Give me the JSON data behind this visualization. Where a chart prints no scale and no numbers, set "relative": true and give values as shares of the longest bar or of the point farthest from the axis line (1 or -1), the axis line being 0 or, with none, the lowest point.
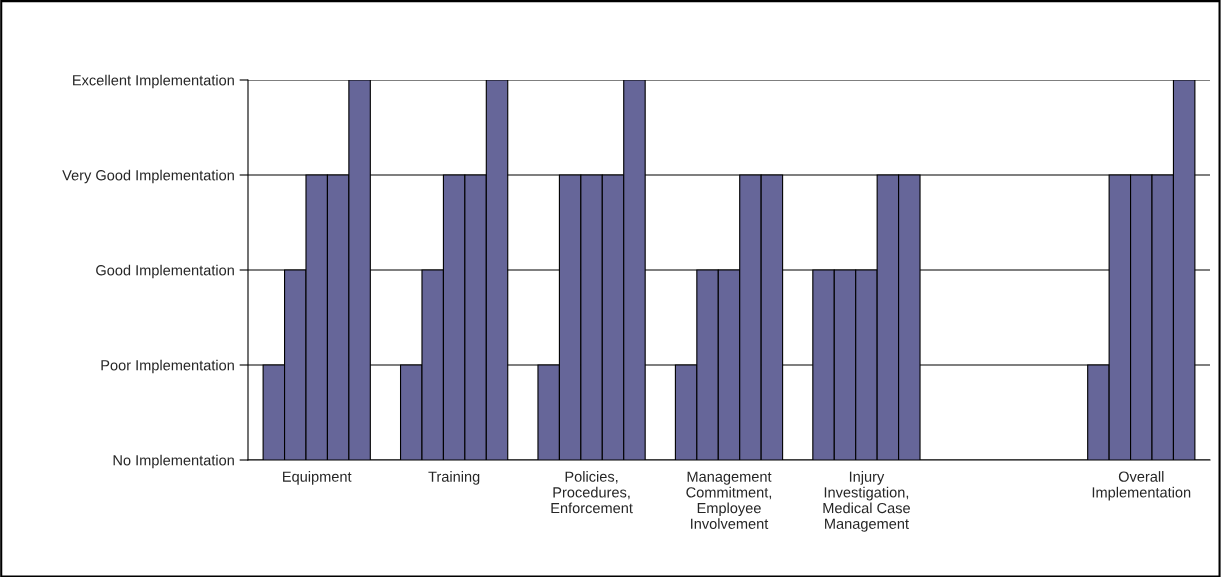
{
  "chart_data": {
    "type": "bar",
    "relative": true,
    "categories": [
      "Equipment",
      "Training",
      "Policies,\nProcedures,\nEnforcement",
      "Management\nCommitment,\nEmployee\nInvolvement",
      "Injury\nInvestigation,\nMedical Case\nManagement",
      null,
      "Overall\nImplementation"
    ],
    "series": [
      {
        "color": "#666699",
        "values": [
          0.25,
          0.25,
          0.25,
          0.25,
          0.5,
          null,
          0.25
        ]
      },
      {
        "color": "#666699",
        "values": [
          0.5,
          0.5,
          0.75,
          0.5,
          0.5,
          null,
          0.75
        ]
      },
      {
        "color": "#666699",
        "values": [
          0.75,
          0.75,
          0.75,
          0.5,
          0.5,
          null,
          0.75
        ]
      },
      {
        "color": "#666699",
        "values": [
          0.75,
          0.75,
          0.75,
          0.75,
          0.75,
          null,
          0.75
        ]
      },
      {
        "color": "#666699",
        "values": [
          1,
          1,
          1,
          0.75,
          0.75,
          null,
          1
        ]
      }
    ],
    "annotations": [
      "No Implementation",
      "Poor Implementation",
      "Good Implementation",
      "Very Good Implementation",
      "Excellent Implementation"
    ],
    "grid": "y",
    "legend": false
  }
}
